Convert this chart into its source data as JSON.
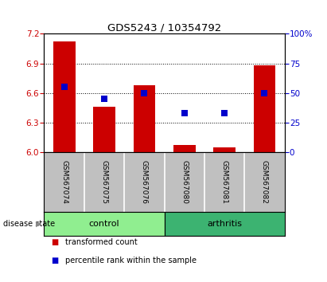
{
  "title": "GDS5243 / 10354792",
  "samples": [
    "GSM567074",
    "GSM567075",
    "GSM567076",
    "GSM567080",
    "GSM567081",
    "GSM567082"
  ],
  "bar_values": [
    7.12,
    6.46,
    6.68,
    6.07,
    6.05,
    6.88
  ],
  "bar_base": 6.0,
  "bar_color": "#cc0000",
  "percentile_values": [
    55,
    45,
    50,
    33,
    33,
    50
  ],
  "dot_color": "#0000cc",
  "ylim_left": [
    6.0,
    7.2
  ],
  "ylim_right": [
    0,
    100
  ],
  "yticks_left": [
    6.0,
    6.3,
    6.6,
    6.9,
    7.2
  ],
  "yticks_right": [
    0,
    25,
    50,
    75,
    100
  ],
  "groups": [
    {
      "label": "control",
      "indices": [
        0,
        1,
        2
      ],
      "color": "#90EE90"
    },
    {
      "label": "arthritis",
      "indices": [
        3,
        4,
        5
      ],
      "color": "#3CB371"
    }
  ],
  "group_label": "disease state",
  "legend_items": [
    {
      "label": "transformed count",
      "color": "#cc0000"
    },
    {
      "label": "percentile rank within the sample",
      "color": "#0000cc"
    }
  ],
  "tick_label_color_left": "#cc0000",
  "tick_label_color_right": "#0000cc",
  "bar_width": 0.55,
  "dot_size": 35,
  "background_xtick": "#c0c0c0"
}
